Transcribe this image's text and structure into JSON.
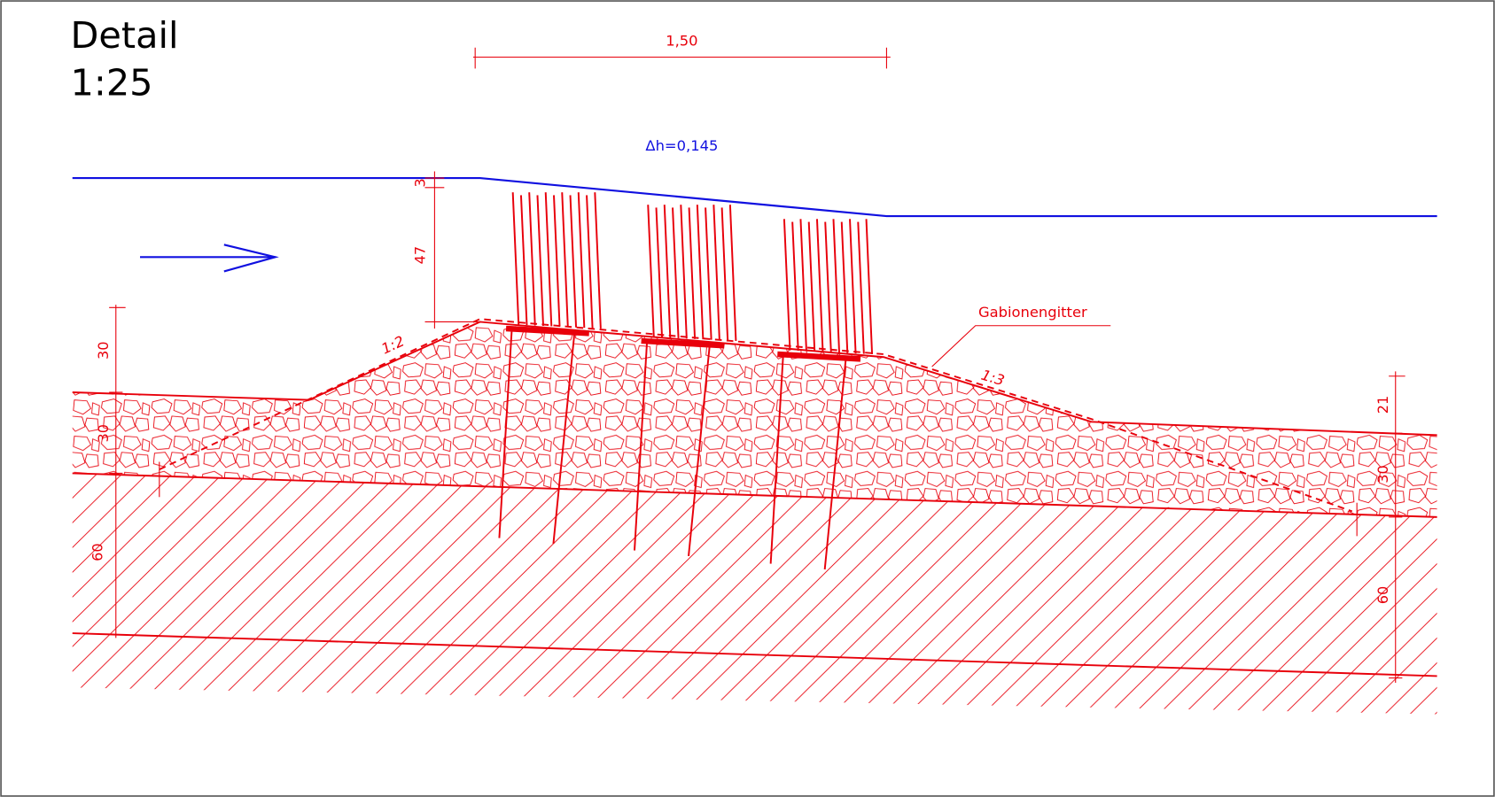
{
  "title": {
    "line1": "Detail",
    "line2": "1:25"
  },
  "dimensions": {
    "width": "1,50",
    "head_loss": "Δh=0,145",
    "freeboard": "3",
    "water_depth": "47",
    "left_sill_height": "30",
    "left_stone_layer": "30",
    "left_soil_layer": "60",
    "right_step": "21",
    "right_stone_layer": "30",
    "right_soil_layer": "60"
  },
  "slopes": {
    "upstream": "1:2",
    "downstream": "1:3"
  },
  "labels": {
    "grid": "Gabionengitter"
  }
}
